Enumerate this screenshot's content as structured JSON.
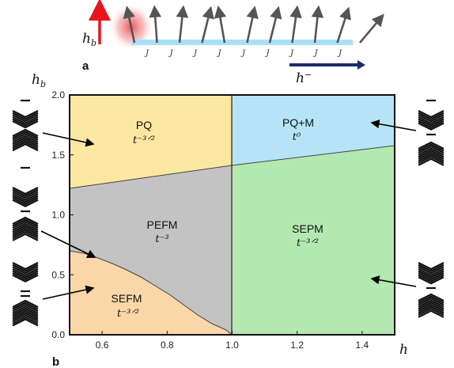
{
  "panel_a": {
    "label": "a",
    "hb_label": "h",
    "hb_sub": "b",
    "h_label": "h",
    "h_sup": "−",
    "j_labels": [
      "J",
      "J",
      "J",
      "J",
      "J",
      "J",
      "J",
      "J",
      "J"
    ],
    "spin_tilts_deg": [
      -12,
      -4,
      6,
      14,
      -10,
      12,
      14,
      8,
      6,
      18,
      40
    ],
    "colors": {
      "hb_arrow": "#e8141c",
      "h_arrow": "#1a2d6b",
      "chain": "#a9e0f5",
      "glow": "#f07a7a"
    }
  },
  "panel_b": {
    "label": "b",
    "ylabel": "h",
    "ylabel_sub": "b",
    "xlabel": "h",
    "xticks": [
      "0.6",
      "0.8",
      "1.0",
      "1.2",
      "1.4"
    ],
    "yticks": [
      "0.0",
      "0.5",
      "1.0",
      "1.5",
      "2.0"
    ],
    "regions": [
      {
        "id": "pq",
        "name": "PQ",
        "exp": "t⁻³ᐟ²",
        "color": "#fbe7a0"
      },
      {
        "id": "pqm",
        "name": "PQ+M",
        "exp": "t⁰",
        "color": "#b5e4f7"
      },
      {
        "id": "pefm",
        "name": "PEFM",
        "exp": "t⁻³",
        "color": "#c3c3c3"
      },
      {
        "id": "sepm",
        "name": "SEPM",
        "exp": "t⁻³ᐟ²",
        "color": "#b3e9b0"
      },
      {
        "id": "sefm",
        "name": "SEFM",
        "exp": "t⁻³ᐟ²",
        "color": "#fad7a8"
      }
    ]
  },
  "chart_data": {
    "type": "phase-diagram",
    "xlabel": "h",
    "ylabel": "h_b",
    "xlim": [
      0.5,
      1.5
    ],
    "ylim": [
      0.0,
      2.0
    ],
    "boundaries": {
      "pq_pefm_line": [
        [
          0.5,
          1.23
        ],
        [
          1.0,
          1.42
        ]
      ],
      "pqm_sepm_line": [
        [
          1.0,
          1.42
        ],
        [
          1.5,
          1.58
        ]
      ],
      "vertical_h1": [
        [
          1.0,
          0.0
        ],
        [
          1.0,
          2.0
        ]
      ],
      "sefm_pefm_curve": [
        [
          0.5,
          0.7
        ],
        [
          0.6,
          0.65
        ],
        [
          0.7,
          0.58
        ],
        [
          0.8,
          0.47
        ],
        [
          0.9,
          0.32
        ],
        [
          0.95,
          0.22
        ],
        [
          0.99,
          0.05
        ],
        [
          1.0,
          0.0
        ]
      ]
    },
    "regions": [
      {
        "name": "PQ",
        "exponent": "t^{-3/2}"
      },
      {
        "name": "PQ+M",
        "exponent": "t^{0}"
      },
      {
        "name": "PEFM",
        "exponent": "t^{-3}"
      },
      {
        "name": "SEPM",
        "exponent": "t^{-3/2}"
      },
      {
        "name": "SEFM",
        "exponent": "t^{-3/2}"
      }
    ]
  }
}
